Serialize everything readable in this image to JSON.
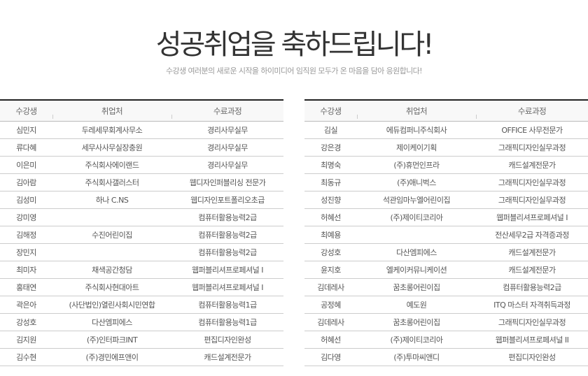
{
  "header": {
    "title": "성공취업을 축하드립니다!",
    "subtitle": "수강생 여러분의 새로운 시작을 하이미디어 임직원 모두가 온 마음을 담아 응원합니다!"
  },
  "columns": [
    "수강생",
    "취업처",
    "수료과정"
  ],
  "left_table": [
    [
      "심민지",
      "두레세무회계사무소",
      "경리사무실무"
    ],
    [
      "류다혜",
      "세무사사무실장충원",
      "경리사무실무"
    ],
    [
      "이은미",
      "주식회사에이랜드",
      "경리사무실무"
    ],
    [
      "김아람",
      "주식회사갤러스터",
      "웹디자인퍼블리싱 전문가"
    ],
    [
      "김성미",
      "하나 C.NS",
      "웹디자인포트폴리오초급"
    ],
    [
      "강미영",
      "",
      "컴퓨터활용능력2급"
    ],
    [
      "김해정",
      "수진어린이집",
      "컴퓨터활용능력2급"
    ],
    [
      "장민지",
      "",
      "컴퓨터활용능력2급"
    ],
    [
      "최미자",
      "채색공간청담",
      "웹퍼블리셔프로페셔널 I"
    ],
    [
      "홍태연",
      "주식회사현대아트",
      "웹퍼블리셔프로페셔널 I"
    ],
    [
      "곽은아",
      "(사단법인)열린사회시민연합",
      "컴퓨터활용능력1급"
    ],
    [
      "강성호",
      "다산엠피에스",
      "컴퓨터활용능력1급"
    ],
    [
      "김지원",
      "(주)인터파크INT",
      "편집디자인완성"
    ],
    [
      "김수현",
      "(주)경민에프앤이",
      "캐드설계전문가"
    ]
  ],
  "right_table": [
    [
      "김실",
      "에듀컴퍼니주식회사",
      "OFFICE 사무전문가"
    ],
    [
      "강은경",
      "제이케이기획",
      "그래픽디자인실무과정"
    ],
    [
      "최명숙",
      "(주)휴먼인프라",
      "캐드설계전문가"
    ],
    [
      "최동규",
      "(주)애니벅스",
      "그래픽디자인실무과정"
    ],
    [
      "성진향",
      "석관임마누엘어린이집",
      "그래픽디자인실무과정"
    ],
    [
      "허혜선",
      "(주)제이티코리아",
      "웹퍼블리셔프로페셔널 I"
    ],
    [
      "최예용",
      "",
      "전산세무2급 자격증과정"
    ],
    [
      "강성호",
      "다산엠피에스",
      "캐드설계전문가"
    ],
    [
      "윤지호",
      "엘케이커뮤니케이션",
      "캐드설계전문가"
    ],
    [
      "김데레사",
      "꿈초롱어린이집",
      "컴퓨터활용능력2급"
    ],
    [
      "공정혜",
      "예도원",
      "ITQ 마스터 자격취득과정"
    ],
    [
      "김데레사",
      "꿈초롱어린이집",
      "그래픽디자인실무과정"
    ],
    [
      "허혜선",
      "(주)제이티코리아",
      "웹퍼블리셔프로페셔널 II"
    ],
    [
      "김다영",
      "(주)투마씨앤디",
      "편집디자인완성"
    ]
  ]
}
